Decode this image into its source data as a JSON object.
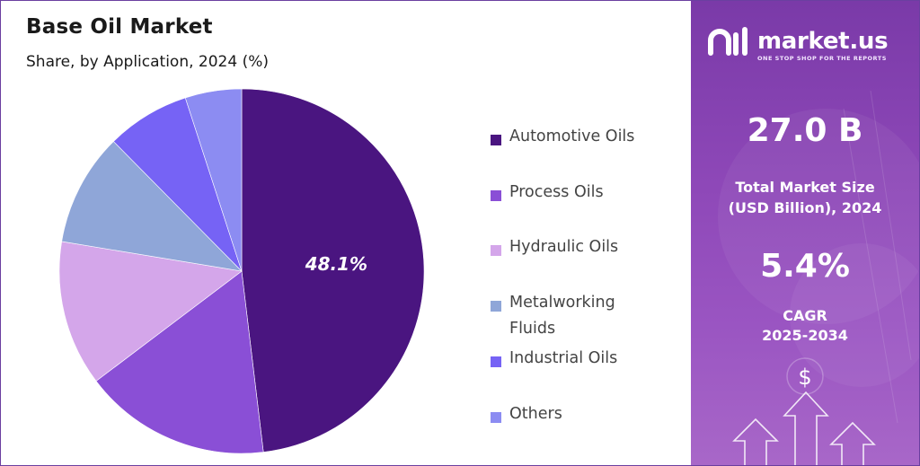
{
  "header": {
    "title": "Base Oil Market",
    "subtitle": "Share, by Application, 2024 (%)"
  },
  "chart_data": {
    "type": "pie",
    "title": "Base Oil Market",
    "subtitle": "Share, by Application, 2024 (%)",
    "categories": [
      "Automotive Oils",
      "Process Oils",
      "Hydraulic Oils",
      "Metalworking Fluids",
      "Industrial Oils",
      "Others"
    ],
    "values": [
      48.1,
      16.6,
      12.9,
      10.0,
      7.4,
      5.0
    ],
    "data_labels": [
      "48.1%",
      "",
      "",
      "",
      "",
      ""
    ],
    "colors": [
      "#4a1580",
      "#8a4fd6",
      "#d4a6ea",
      "#8fa6d8",
      "#7663f5",
      "#8c8cf2"
    ],
    "start_angle_deg": 0,
    "direction": "clockwise",
    "legend_position": "right"
  },
  "legend": {
    "items": [
      {
        "label": "Automotive Oils",
        "color": "#4a1580"
      },
      {
        "label": "Process Oils",
        "color": "#8a4fd6"
      },
      {
        "label": "Hydraulic Oils",
        "color": "#d4a6ea"
      },
      {
        "label": "Metalworking Fluids",
        "color": "#8fa6d8"
      },
      {
        "label": "Industrial Oils",
        "color": "#7663f5"
      },
      {
        "label": "Others",
        "color": "#8c8cf2"
      }
    ]
  },
  "sidebar": {
    "brand": "market.us",
    "tagline": "ONE STOP SHOP FOR THE REPORTS",
    "market_size_value": "27.0 B",
    "market_size_label_line1": "Total Market Size",
    "market_size_label_line2": "(USD Billion), 2024",
    "cagr_value": "5.4%",
    "cagr_label_line1": "CAGR",
    "cagr_label_line2": "2025-2034",
    "dollar_symbol": "$"
  },
  "icons": [
    "logo-mark-icon",
    "dollar-icon",
    "up-arrow-icon"
  ]
}
